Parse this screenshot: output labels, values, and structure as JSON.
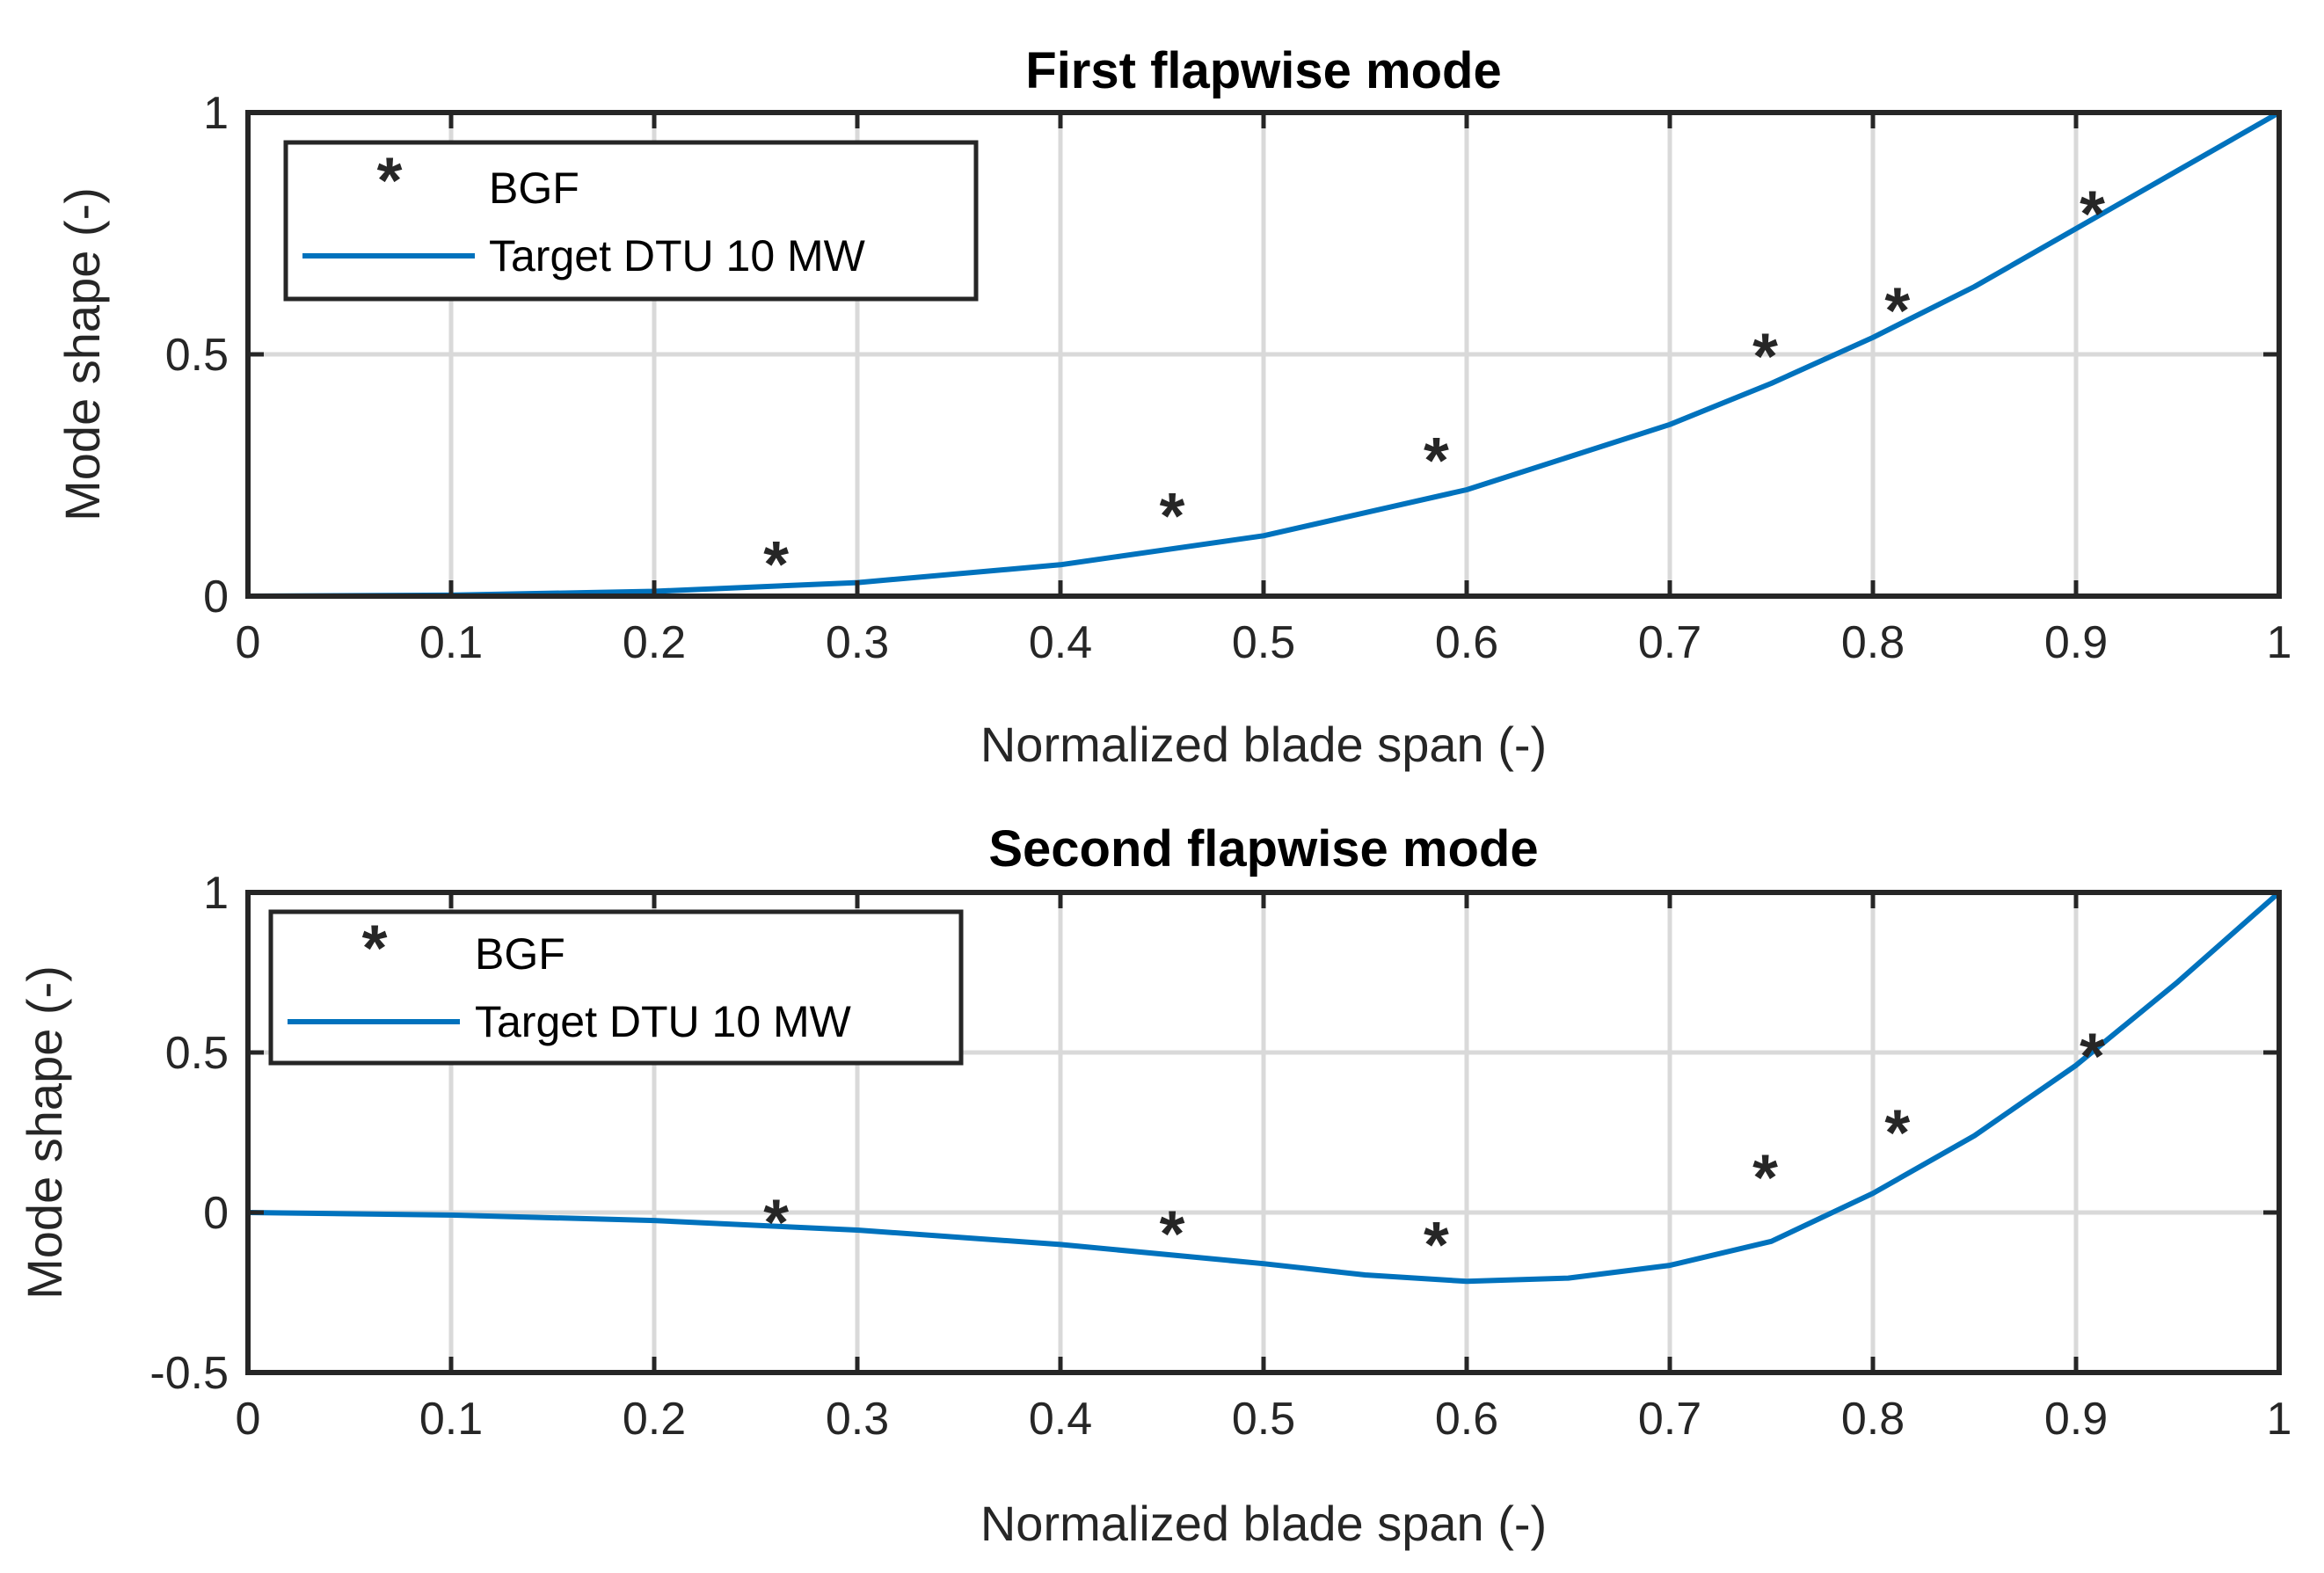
{
  "colors": {
    "target": "#0072bd",
    "bgf": "#ff0000",
    "axes": "#262626",
    "grid": "#d9d9d9"
  },
  "chart_data": [
    {
      "type": "line",
      "title": "First flapwise mode",
      "xlabel": "Normalized blade span (-)",
      "ylabel": "Mode shape (-)",
      "xlim": [
        0,
        1
      ],
      "ylim": [
        0,
        1
      ],
      "xticks": [
        0,
        0.1,
        0.2,
        0.3,
        0.4,
        0.5,
        0.6,
        0.7,
        0.8,
        0.9,
        1
      ],
      "xtick_labels": [
        "0",
        "0.1",
        "0.2",
        "0.3",
        "0.4",
        "0.5",
        "0.6",
        "0.7",
        "0.8",
        "0.9",
        "1"
      ],
      "yticks": [
        0,
        0.5,
        1
      ],
      "ytick_labels": [
        "0",
        "0.5",
        "1"
      ],
      "grid": true,
      "legend": {
        "position": "top-left",
        "entries": [
          "BGF",
          "Target DTU 10 MW"
        ]
      },
      "series": [
        {
          "name": "BGF",
          "marker": "asterisk",
          "x": [
            0.26,
            0.455,
            0.585,
            0.747,
            0.812,
            0.908
          ],
          "y": [
            0.06,
            0.16,
            0.275,
            0.49,
            0.585,
            0.785
          ]
        },
        {
          "name": "Target DTU 10 MW",
          "line": "solid",
          "x": [
            0,
            0.1,
            0.2,
            0.3,
            0.4,
            0.5,
            0.6,
            0.7,
            0.75,
            0.8,
            0.85,
            0.9,
            0.95,
            1
          ],
          "y": [
            0,
            0.002,
            0.01,
            0.028,
            0.065,
            0.125,
            0.22,
            0.355,
            0.44,
            0.535,
            0.64,
            0.76,
            0.88,
            1
          ]
        }
      ]
    },
    {
      "type": "line",
      "title": "Second flapwise mode",
      "xlabel": "Normalized blade span (-)",
      "ylabel": "Mode shape (-)",
      "xlim": [
        0,
        1
      ],
      "ylim": [
        -0.5,
        1
      ],
      "xticks": [
        0,
        0.1,
        0.2,
        0.3,
        0.4,
        0.5,
        0.6,
        0.7,
        0.8,
        0.9,
        1
      ],
      "xtick_labels": [
        "0",
        "0.1",
        "0.2",
        "0.3",
        "0.4",
        "0.5",
        "0.6",
        "0.7",
        "0.8",
        "0.9",
        "1"
      ],
      "yticks": [
        -0.5,
        0,
        0.5,
        1
      ],
      "ytick_labels": [
        "-0.5",
        "0",
        "0.5",
        "1"
      ],
      "grid": true,
      "legend": {
        "position": "top-left",
        "entries": [
          "BGF",
          "Target DTU 10 MW"
        ]
      },
      "series": [
        {
          "name": "BGF",
          "marker": "asterisk",
          "x": [
            0.26,
            0.455,
            0.585,
            0.747,
            0.812,
            0.908
          ],
          "y": [
            -0.04,
            -0.075,
            -0.11,
            0.1,
            0.24,
            0.48
          ]
        },
        {
          "name": "Target DTU 10 MW",
          "line": "solid",
          "x": [
            0,
            0.1,
            0.2,
            0.3,
            0.4,
            0.5,
            0.55,
            0.6,
            0.65,
            0.7,
            0.75,
            0.8,
            0.85,
            0.9,
            0.95,
            1
          ],
          "y": [
            0,
            -0.008,
            -0.025,
            -0.055,
            -0.1,
            -0.16,
            -0.195,
            -0.215,
            -0.205,
            -0.165,
            -0.09,
            0.06,
            0.24,
            0.46,
            0.72,
            1
          ]
        }
      ]
    }
  ]
}
